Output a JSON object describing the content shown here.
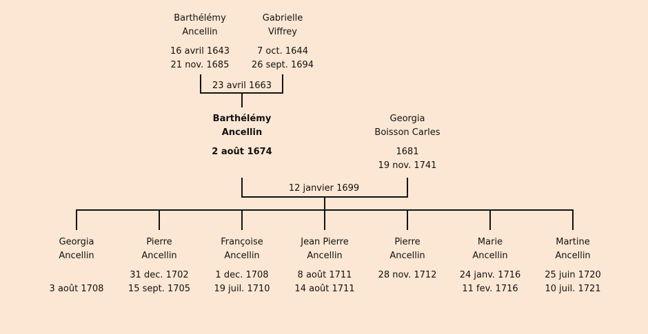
{
  "grandparents": {
    "father": {
      "first": "Barthélémy",
      "last": "Ancellin",
      "birth": "16 avril 1643",
      "death": "21 nov. 1685"
    },
    "mother": {
      "first": "Gabrielle",
      "last": "Viffrey",
      "birth": "7 oct. 1644",
      "death": "26 sept. 1694"
    },
    "marriage": "23 avril 1663"
  },
  "parents": {
    "subject": {
      "first": "Barthélémy",
      "last": "Ancellin",
      "birth": "2 août 1674",
      "death": ""
    },
    "spouse": {
      "first": "Georgia",
      "last": "Boisson Carles",
      "birth": "1681",
      "death": "19 nov. 1741"
    },
    "marriage": "12 janvier 1699"
  },
  "children": [
    {
      "first": "Georgia",
      "last": "Ancellin",
      "birth": "",
      "death": "3 août 1708"
    },
    {
      "first": "Pierre",
      "last": "Ancellin",
      "birth": "31 dec. 1702",
      "death": "15 sept. 1705"
    },
    {
      "first": "Françoise",
      "last": "Ancellin",
      "birth": "1 dec. 1708",
      "death": "19 juil. 1710"
    },
    {
      "first": "Jean Pierre",
      "last": "Ancellin",
      "birth": "8 août 1711",
      "death": "14 août 1711"
    },
    {
      "first": "Pierre",
      "last": "Ancellin",
      "birth": "28 nov. 1712",
      "death": ""
    },
    {
      "first": "Marie",
      "last": "Ancellin",
      "birth": "24 janv. 1716",
      "death": "11 fev. 1716"
    },
    {
      "first": "Martine",
      "last": "Ancellin",
      "birth": "25 juin 1720",
      "death": "10 juil. 1721"
    }
  ]
}
